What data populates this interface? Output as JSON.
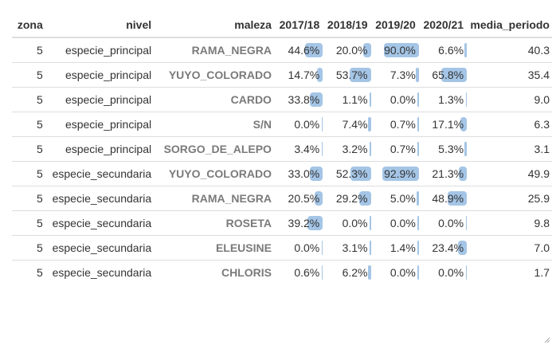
{
  "colors": {
    "bar": "#a4c5e6",
    "border": "#dddddd",
    "maleza_text": "#7a7a7a"
  },
  "headers": {
    "zona": "zona",
    "nivel": "nivel",
    "maleza": "maleza",
    "y1": "2017/18",
    "y2": "2018/19",
    "y3": "2019/20",
    "y4": "2020/21",
    "media": "media_periodo"
  },
  "rows": [
    {
      "zona": "5",
      "nivel": "especie_principal",
      "maleza": "RAMA_NEGRA",
      "y1": "44.6%",
      "y2": "20.0%",
      "y3": "90.0%",
      "y4": "6.6%",
      "media": "40.3",
      "b1": 0.446,
      "b2": 0.2,
      "b3": 0.9,
      "b4": 0.066
    },
    {
      "zona": "5",
      "nivel": "especie_principal",
      "maleza": "YUYO_COLORADO",
      "y1": "14.7%",
      "y2": "53.7%",
      "y3": "7.3%",
      "y4": "65.8%",
      "media": "35.4",
      "b1": 0.147,
      "b2": 0.537,
      "b3": 0.073,
      "b4": 0.658
    },
    {
      "zona": "5",
      "nivel": "especie_principal",
      "maleza": "CARDO",
      "y1": "33.8%",
      "y2": "1.1%",
      "y3": "0.0%",
      "y4": "1.3%",
      "media": "9.0",
      "b1": 0.338,
      "b2": 0.011,
      "b3": 0.0,
      "b4": 0.013
    },
    {
      "zona": "5",
      "nivel": "especie_principal",
      "maleza": "S/N",
      "y1": "0.0%",
      "y2": "7.4%",
      "y3": "0.7%",
      "y4": "17.1%",
      "media": "6.3",
      "b1": 0.0,
      "b2": 0.074,
      "b3": 0.007,
      "b4": 0.171
    },
    {
      "zona": "5",
      "nivel": "especie_principal",
      "maleza": "SORGO_DE_ALEPO",
      "y1": "3.4%",
      "y2": "3.2%",
      "y3": "0.7%",
      "y4": "5.3%",
      "media": "3.1",
      "b1": 0.034,
      "b2": 0.032,
      "b3": 0.007,
      "b4": 0.053
    },
    {
      "zona": "5",
      "nivel": "especie_secundaria",
      "maleza": "YUYO_COLORADO",
      "y1": "33.0%",
      "y2": "52.3%",
      "y3": "92.9%",
      "y4": "21.3%",
      "media": "49.9",
      "b1": 0.33,
      "b2": 0.523,
      "b3": 0.929,
      "b4": 0.213
    },
    {
      "zona": "5",
      "nivel": "especie_secundaria",
      "maleza": "RAMA_NEGRA",
      "y1": "20.5%",
      "y2": "29.2%",
      "y3": "5.0%",
      "y4": "48.9%",
      "media": "25.9",
      "b1": 0.205,
      "b2": 0.292,
      "b3": 0.05,
      "b4": 0.489
    },
    {
      "zona": "5",
      "nivel": "especie_secundaria",
      "maleza": "ROSETA",
      "y1": "39.2%",
      "y2": "0.0%",
      "y3": "0.0%",
      "y4": "0.0%",
      "media": "9.8",
      "b1": 0.392,
      "b2": 0.0,
      "b3": 0.0,
      "b4": 0.0
    },
    {
      "zona": "5",
      "nivel": "especie_secundaria",
      "maleza": "ELEUSINE",
      "y1": "0.0%",
      "y2": "3.1%",
      "y3": "1.4%",
      "y4": "23.4%",
      "media": "7.0",
      "b1": 0.0,
      "b2": 0.031,
      "b3": 0.014,
      "b4": 0.234
    },
    {
      "zona": "5",
      "nivel": "especie_secundaria",
      "maleza": "CHLORIS",
      "y1": "0.6%",
      "y2": "6.2%",
      "y3": "0.0%",
      "y4": "0.0%",
      "media": "1.7",
      "b1": 0.006,
      "b2": 0.062,
      "b3": 0.0,
      "b4": 0.0
    }
  ]
}
